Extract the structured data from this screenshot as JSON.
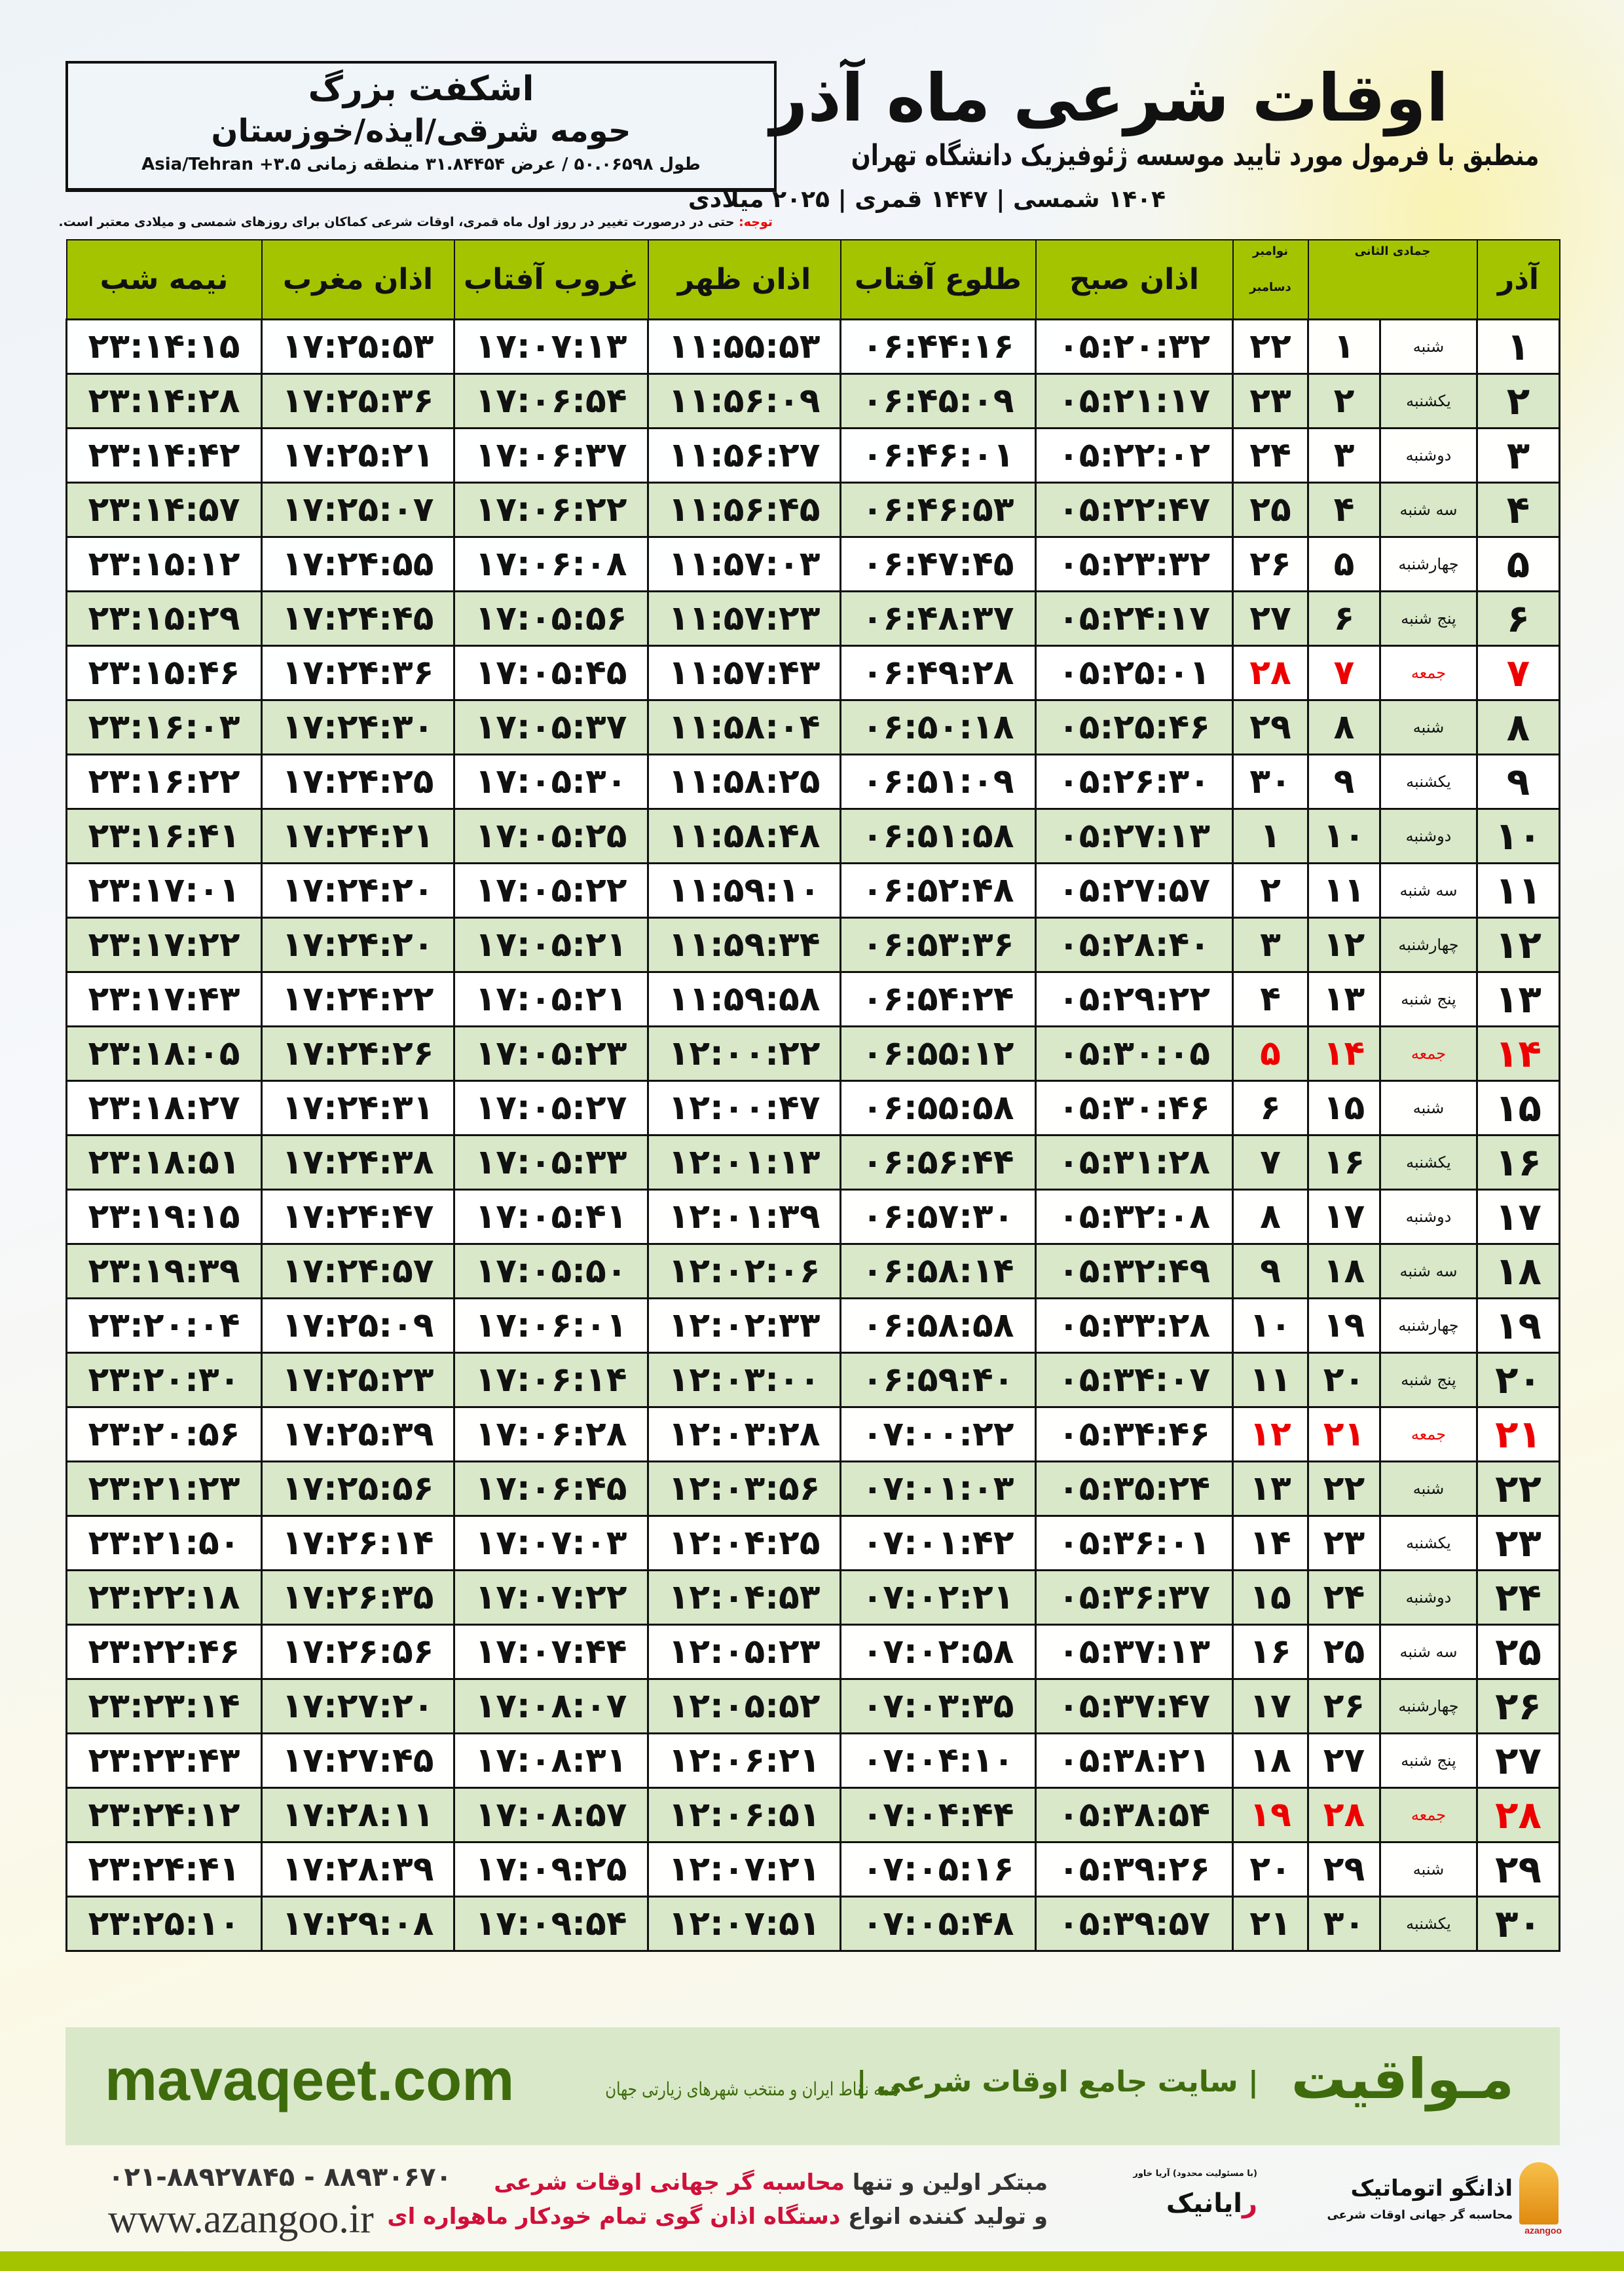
{
  "header": {
    "title": "اوقات شرعی ماه آذر",
    "subtitle": "منطبق با فرمول مورد تایید موسسه ژئوفیزیک دانشگاه تهران",
    "dates": "۱۴۰۴ شمسی | ۱۴۴۷ قمری | ۲۰۲۵ میلادی",
    "place": "اشکفت بزرگ",
    "region": "حومه شرقی/ایذه/خوزستان",
    "coords": "طول ۵۰.۰۶۵۹۸ / عرض ۳۱.۸۴۴۵۴ منطقه زمانی ۳.۵+ Asia/Tehran",
    "notice_label": "توجه:",
    "notice": " حتی در درصورت تغییر در روز اول ماه قمری، اوقات شرعی کماکان برای روزهای شمسی و میلادی معتبر است."
  },
  "table": {
    "columns": {
      "day": "آذر",
      "hijri": "جمادی الثانی",
      "greg_top": "نوامبر",
      "greg_bottom": "دسامبر",
      "fajr": "اذان صبح",
      "sunrise": "طلوع آفتاب",
      "dhuhr": "اذان ظهر",
      "sunset": "غروب آفتاب",
      "maghrib": "اذان مغرب",
      "midnight": "نیمه شب"
    },
    "rows": [
      [
        "۱",
        "شنبه",
        "۱",
        "۲۲",
        "۰۵:۲۰:۳۲",
        "۰۶:۴۴:۱۶",
        "۱۱:۵۵:۵۳",
        "۱۷:۰۷:۱۳",
        "۱۷:۲۵:۵۳",
        "۲۳:۱۴:۱۵"
      ],
      [
        "۲",
        "یکشنبه",
        "۲",
        "۲۳",
        "۰۵:۲۱:۱۷",
        "۰۶:۴۵:۰۹",
        "۱۱:۵۶:۰۹",
        "۱۷:۰۶:۵۴",
        "۱۷:۲۵:۳۶",
        "۲۳:۱۴:۲۸"
      ],
      [
        "۳",
        "دوشنبه",
        "۳",
        "۲۴",
        "۰۵:۲۲:۰۲",
        "۰۶:۴۶:۰۱",
        "۱۱:۵۶:۲۷",
        "۱۷:۰۶:۳۷",
        "۱۷:۲۵:۲۱",
        "۲۳:۱۴:۴۲"
      ],
      [
        "۴",
        "سه شنبه",
        "۴",
        "۲۵",
        "۰۵:۲۲:۴۷",
        "۰۶:۴۶:۵۳",
        "۱۱:۵۶:۴۵",
        "۱۷:۰۶:۲۲",
        "۱۷:۲۵:۰۷",
        "۲۳:۱۴:۵۷"
      ],
      [
        "۵",
        "چهارشنبه",
        "۵",
        "۲۶",
        "۰۵:۲۳:۳۲",
        "۰۶:۴۷:۴۵",
        "۱۱:۵۷:۰۳",
        "۱۷:۰۶:۰۸",
        "۱۷:۲۴:۵۵",
        "۲۳:۱۵:۱۲"
      ],
      [
        "۶",
        "پنج شنبه",
        "۶",
        "۲۷",
        "۰۵:۲۴:۱۷",
        "۰۶:۴۸:۳۷",
        "۱۱:۵۷:۲۳",
        "۱۷:۰۵:۵۶",
        "۱۷:۲۴:۴۵",
        "۲۳:۱۵:۲۹"
      ],
      [
        "۷",
        "جمعه",
        "۷",
        "۲۸",
        "۰۵:۲۵:۰۱",
        "۰۶:۴۹:۲۸",
        "۱۱:۵۷:۴۳",
        "۱۷:۰۵:۴۵",
        "۱۷:۲۴:۳۶",
        "۲۳:۱۵:۴۶"
      ],
      [
        "۸",
        "شنبه",
        "۸",
        "۲۹",
        "۰۵:۲۵:۴۶",
        "۰۶:۵۰:۱۸",
        "۱۱:۵۸:۰۴",
        "۱۷:۰۵:۳۷",
        "۱۷:۲۴:۳۰",
        "۲۳:۱۶:۰۳"
      ],
      [
        "۹",
        "یکشنبه",
        "۹",
        "۳۰",
        "۰۵:۲۶:۳۰",
        "۰۶:۵۱:۰۹",
        "۱۱:۵۸:۲۵",
        "۱۷:۰۵:۳۰",
        "۱۷:۲۴:۲۵",
        "۲۳:۱۶:۲۲"
      ],
      [
        "۱۰",
        "دوشنبه",
        "۱۰",
        "۱",
        "۰۵:۲۷:۱۳",
        "۰۶:۵۱:۵۸",
        "۱۱:۵۸:۴۸",
        "۱۷:۰۵:۲۵",
        "۱۷:۲۴:۲۱",
        "۲۳:۱۶:۴۱"
      ],
      [
        "۱۱",
        "سه شنبه",
        "۱۱",
        "۲",
        "۰۵:۲۷:۵۷",
        "۰۶:۵۲:۴۸",
        "۱۱:۵۹:۱۰",
        "۱۷:۰۵:۲۲",
        "۱۷:۲۴:۲۰",
        "۲۳:۱۷:۰۱"
      ],
      [
        "۱۲",
        "چهارشنبه",
        "۱۲",
        "۳",
        "۰۵:۲۸:۴۰",
        "۰۶:۵۳:۳۶",
        "۱۱:۵۹:۳۴",
        "۱۷:۰۵:۲۱",
        "۱۷:۲۴:۲۰",
        "۲۳:۱۷:۲۲"
      ],
      [
        "۱۳",
        "پنج شنبه",
        "۱۳",
        "۴",
        "۰۵:۲۹:۲۲",
        "۰۶:۵۴:۲۴",
        "۱۱:۵۹:۵۸",
        "۱۷:۰۵:۲۱",
        "۱۷:۲۴:۲۲",
        "۲۳:۱۷:۴۳"
      ],
      [
        "۱۴",
        "جمعه",
        "۱۴",
        "۵",
        "۰۵:۳۰:۰۵",
        "۰۶:۵۵:۱۲",
        "۱۲:۰۰:۲۲",
        "۱۷:۰۵:۲۳",
        "۱۷:۲۴:۲۶",
        "۲۳:۱۸:۰۵"
      ],
      [
        "۱۵",
        "شنبه",
        "۱۵",
        "۶",
        "۰۵:۳۰:۴۶",
        "۰۶:۵۵:۵۸",
        "۱۲:۰۰:۴۷",
        "۱۷:۰۵:۲۷",
        "۱۷:۲۴:۳۱",
        "۲۳:۱۸:۲۷"
      ],
      [
        "۱۶",
        "یکشنبه",
        "۱۶",
        "۷",
        "۰۵:۳۱:۲۸",
        "۰۶:۵۶:۴۴",
        "۱۲:۰۱:۱۳",
        "۱۷:۰۵:۳۳",
        "۱۷:۲۴:۳۸",
        "۲۳:۱۸:۵۱"
      ],
      [
        "۱۷",
        "دوشنبه",
        "۱۷",
        "۸",
        "۰۵:۳۲:۰۸",
        "۰۶:۵۷:۳۰",
        "۱۲:۰۱:۳۹",
        "۱۷:۰۵:۴۱",
        "۱۷:۲۴:۴۷",
        "۲۳:۱۹:۱۵"
      ],
      [
        "۱۸",
        "سه شنبه",
        "۱۸",
        "۹",
        "۰۵:۳۲:۴۹",
        "۰۶:۵۸:۱۴",
        "۱۲:۰۲:۰۶",
        "۱۷:۰۵:۵۰",
        "۱۷:۲۴:۵۷",
        "۲۳:۱۹:۳۹"
      ],
      [
        "۱۹",
        "چهارشنبه",
        "۱۹",
        "۱۰",
        "۰۵:۳۳:۲۸",
        "۰۶:۵۸:۵۸",
        "۱۲:۰۲:۳۳",
        "۱۷:۰۶:۰۱",
        "۱۷:۲۵:۰۹",
        "۲۳:۲۰:۰۴"
      ],
      [
        "۲۰",
        "پنج شنبه",
        "۲۰",
        "۱۱",
        "۰۵:۳۴:۰۷",
        "۰۶:۵۹:۴۰",
        "۱۲:۰۳:۰۰",
        "۱۷:۰۶:۱۴",
        "۱۷:۲۵:۲۳",
        "۲۳:۲۰:۳۰"
      ],
      [
        "۲۱",
        "جمعه",
        "۲۱",
        "۱۲",
        "۰۵:۳۴:۴۶",
        "۰۷:۰۰:۲۲",
        "۱۲:۰۳:۲۸",
        "۱۷:۰۶:۲۸",
        "۱۷:۲۵:۳۹",
        "۲۳:۲۰:۵۶"
      ],
      [
        "۲۲",
        "شنبه",
        "۲۲",
        "۱۳",
        "۰۵:۳۵:۲۴",
        "۰۷:۰۱:۰۳",
        "۱۲:۰۳:۵۶",
        "۱۷:۰۶:۴۵",
        "۱۷:۲۵:۵۶",
        "۲۳:۲۱:۲۳"
      ],
      [
        "۲۳",
        "یکشنبه",
        "۲۳",
        "۱۴",
        "۰۵:۳۶:۰۱",
        "۰۷:۰۱:۴۲",
        "۱۲:۰۴:۲۵",
        "۱۷:۰۷:۰۳",
        "۱۷:۲۶:۱۴",
        "۲۳:۲۱:۵۰"
      ],
      [
        "۲۴",
        "دوشنبه",
        "۲۴",
        "۱۵",
        "۰۵:۳۶:۳۷",
        "۰۷:۰۲:۲۱",
        "۱۲:۰۴:۵۳",
        "۱۷:۰۷:۲۲",
        "۱۷:۲۶:۳۵",
        "۲۳:۲۲:۱۸"
      ],
      [
        "۲۵",
        "سه شنبه",
        "۲۵",
        "۱۶",
        "۰۵:۳۷:۱۳",
        "۰۷:۰۲:۵۸",
        "۱۲:۰۵:۲۳",
        "۱۷:۰۷:۴۴",
        "۱۷:۲۶:۵۶",
        "۲۳:۲۲:۴۶"
      ],
      [
        "۲۶",
        "چهارشنبه",
        "۲۶",
        "۱۷",
        "۰۵:۳۷:۴۷",
        "۰۷:۰۳:۳۵",
        "۱۲:۰۵:۵۲",
        "۱۷:۰۸:۰۷",
        "۱۷:۲۷:۲۰",
        "۲۳:۲۳:۱۴"
      ],
      [
        "۲۷",
        "پنج شنبه",
        "۲۷",
        "۱۸",
        "۰۵:۳۸:۲۱",
        "۰۷:۰۴:۱۰",
        "۱۲:۰۶:۲۱",
        "۱۷:۰۸:۳۱",
        "۱۷:۲۷:۴۵",
        "۲۳:۲۳:۴۳"
      ],
      [
        "۲۸",
        "جمعه",
        "۲۸",
        "۱۹",
        "۰۵:۳۸:۵۴",
        "۰۷:۰۴:۴۴",
        "۱۲:۰۶:۵۱",
        "۱۷:۰۸:۵۷",
        "۱۷:۲۸:۱۱",
        "۲۳:۲۴:۱۲"
      ],
      [
        "۲۹",
        "شنبه",
        "۲۹",
        "۲۰",
        "۰۵:۳۹:۲۶",
        "۰۷:۰۵:۱۶",
        "۱۲:۰۷:۲۱",
        "۱۷:۰۹:۲۵",
        "۱۷:۲۸:۳۹",
        "۲۳:۲۴:۴۱"
      ],
      [
        "۳۰",
        "یکشنبه",
        "۳۰",
        "۲۱",
        "۰۵:۳۹:۵۷",
        "۰۷:۰۵:۴۸",
        "۱۲:۰۷:۵۱",
        "۱۷:۰۹:۵۴",
        "۱۷:۲۹:۰۸",
        "۲۳:۲۵:۱۰"
      ]
    ],
    "friday_label": "جمعه",
    "friday_color": "#e00000",
    "header_color": "#a5c400",
    "alt_row_color": "#d8e8c8"
  },
  "footer": {
    "brand": "مـواقیت",
    "slogan": "| سایت جامع اوقات شرعی |",
    "slogan2": "همه نقاط ایران و منتخب شهرهای زیارتی جهان",
    "site": "mavaqeet.com",
    "line1_a": "مبتکر اولین و تنها ",
    "line1_b": "محاسبه گر جهانی اوقات شرعی",
    "line2_a": "و تولید کننده انواع ",
    "line2_b": "دستگاه اذان گوی تمام خودکار ماهواره ای",
    "phone": "۰۲۱-۸۸۹۲۷۸۴۵ - ۸۸۹۳۰۶۷۰",
    "web": "www.azangoo.ir",
    "logo1_name": "اذانگو اتوماتیک",
    "logo1_sub": "محاسبه گر جهانی اوقات شرعی",
    "logo1_en": "azangoo",
    "logo2_name_red": "ر",
    "logo2_name": "ایانیک",
    "logo2_sub": "(با مسئولیت محدود) آریا خاور"
  }
}
